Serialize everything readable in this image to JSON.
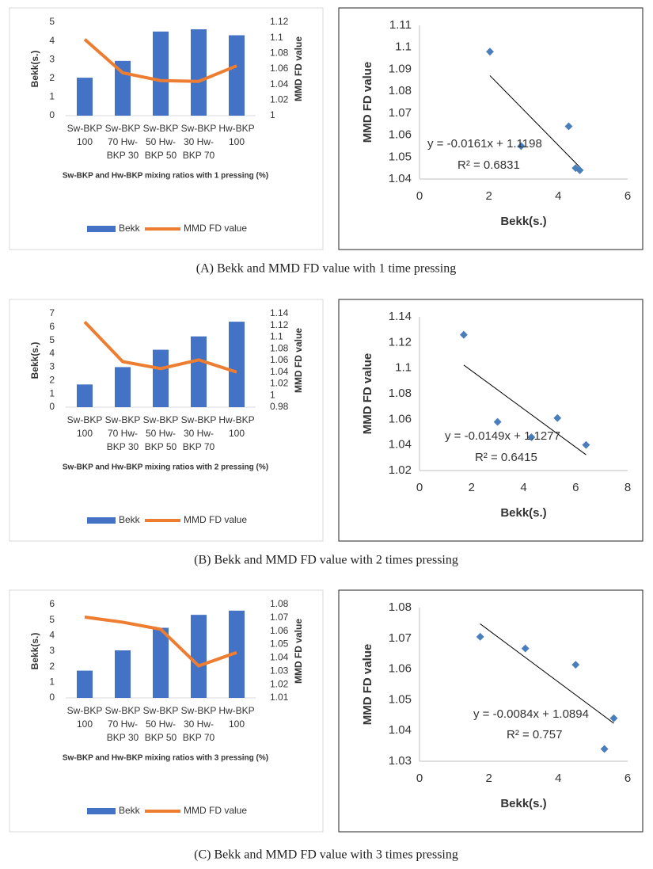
{
  "chart_data": [
    {
      "type": "combo",
      "categories": [
        [
          "Sw-BKP",
          "100"
        ],
        [
          "Sw-BKP",
          "70 Hw-",
          "BKP 30"
        ],
        [
          "Sw-BKP",
          "50 Hw-",
          "BKP 50"
        ],
        [
          "Sw-BKP",
          "30 Hw-",
          "BKP 70"
        ],
        [
          "Hw-BKP",
          "100"
        ]
      ],
      "series": [
        {
          "name": "Bekk",
          "color": "#4472c4",
          "values": [
            2.03,
            2.93,
            4.5,
            4.62,
            4.3
          ]
        },
        {
          "name": "MMD FD value",
          "color": "#ed7d31",
          "axis": "y2",
          "values": [
            1.098,
            1.055,
            1.045,
            1.044,
            1.064
          ]
        }
      ],
      "ylim": [
        0,
        5
      ],
      "yticks": [
        0,
        1,
        2,
        3,
        4,
        5
      ],
      "y2lim": [
        1,
        1.12
      ],
      "y2ticks": [
        1,
        1.02,
        1.04,
        1.06,
        1.08,
        1.1,
        1.12
      ],
      "y_label": "Bekk(s.)",
      "y2_label": "MMD FD value",
      "x_label": "Sw-BKP and Hw-BKP mixing ratios with 1 pressing (%)"
    },
    {
      "type": "scatter",
      "x": [
        2.03,
        2.93,
        4.3,
        4.5,
        4.62
      ],
      "values": [
        1.098,
        1.055,
        1.064,
        1.045,
        1.044
      ],
      "color": "#4a7ebb",
      "xlim": [
        0,
        6
      ],
      "xticks": [
        0,
        2,
        4,
        6
      ],
      "ylim": [
        1.04,
        1.11
      ],
      "yticks": [
        1.04,
        1.05,
        1.06,
        1.07,
        1.08,
        1.09,
        1.1,
        1.11
      ],
      "x_label": "Bekk(s.)",
      "y_label": "MMD FD value",
      "trendline": {
        "slope": -0.0161,
        "intercept": 1.1198
      },
      "annotations": [
        "y = -0.0161x + 1.1198",
        "R² = 0.6831"
      ]
    },
    {
      "type": "combo",
      "categories": [
        [
          "Sw-BKP",
          "100"
        ],
        [
          "Sw-BKP",
          "70 Hw-",
          "BKP 30"
        ],
        [
          "Sw-BKP",
          "50 Hw-",
          "BKP 50"
        ],
        [
          "Sw-BKP",
          "30 Hw-",
          "BKP 70"
        ],
        [
          "Hw-BKP",
          "100"
        ]
      ],
      "series": [
        {
          "name": "Bekk",
          "color": "#4472c4",
          "values": [
            1.7,
            3.0,
            4.3,
            5.3,
            6.4
          ]
        },
        {
          "name": "MMD FD value",
          "color": "#ed7d31",
          "axis": "y2",
          "values": [
            1.126,
            1.058,
            1.046,
            1.061,
            1.04
          ]
        }
      ],
      "ylim": [
        0,
        7
      ],
      "yticks": [
        0,
        1,
        2,
        3,
        4,
        5,
        6,
        7
      ],
      "y2lim": [
        0.98,
        1.14
      ],
      "y2ticks": [
        0.98,
        1,
        1.02,
        1.04,
        1.06,
        1.08,
        1.1,
        1.12,
        1.14
      ],
      "y_label": "Bekk(s.)",
      "y2_label": "MMD FD value",
      "x_label": "Sw-BKP and Hw-BKP mixing ratios with 2 pressing (%)"
    },
    {
      "type": "scatter",
      "x": [
        1.7,
        3.0,
        4.3,
        5.3,
        6.4
      ],
      "values": [
        1.126,
        1.058,
        1.046,
        1.061,
        1.04
      ],
      "color": "#4a7ebb",
      "xlim": [
        0,
        8
      ],
      "xticks": [
        0,
        2,
        4,
        6,
        8
      ],
      "ylim": [
        1.02,
        1.14
      ],
      "yticks": [
        1.02,
        1.04,
        1.06,
        1.08,
        1.1,
        1.12,
        1.14
      ],
      "x_label": "Bekk(s.)",
      "y_label": "MMD FD value",
      "trendline": {
        "slope": -0.0149,
        "intercept": 1.1277
      },
      "annotations": [
        "y = -0.0149x + 1.1277",
        "R² = 0.6415"
      ]
    },
    {
      "type": "combo",
      "categories": [
        [
          "Sw-BKP",
          "100"
        ],
        [
          "Sw-BKP",
          "70 Hw-",
          "BKP 30"
        ],
        [
          "Sw-BKP",
          "50 Hw-",
          "BKP 50"
        ],
        [
          "Sw-BKP",
          "30 Hw-",
          "BKP 70"
        ],
        [
          "Hw-BKP",
          "100"
        ]
      ],
      "series": [
        {
          "name": "Bekk",
          "color": "#4472c4",
          "values": [
            1.75,
            3.05,
            4.5,
            5.33,
            5.6
          ]
        },
        {
          "name": "MMD FD value",
          "color": "#ed7d31",
          "axis": "y2",
          "values": [
            1.0705,
            1.0667,
            1.0614,
            1.034,
            1.044
          ]
        }
      ],
      "ylim": [
        0,
        6
      ],
      "yticks": [
        0,
        1,
        2,
        3,
        4,
        5,
        6
      ],
      "y2lim": [
        1.01,
        1.08
      ],
      "y2ticks": [
        1.01,
        1.02,
        1.03,
        1.04,
        1.05,
        1.06,
        1.07,
        1.08
      ],
      "y_label": "Bekk(s.)",
      "y2_label": "MMD FD value",
      "x_label": "Sw-BKP and Hw-BKP mixing ratios with 3 pressing (%)"
    },
    {
      "type": "scatter",
      "x": [
        1.75,
        3.05,
        4.5,
        5.33,
        5.6
      ],
      "values": [
        1.0705,
        1.0667,
        1.0614,
        1.034,
        1.044
      ],
      "color": "#4a7ebb",
      "xlim": [
        0,
        6
      ],
      "xticks": [
        0,
        2,
        4,
        6
      ],
      "ylim": [
        1.03,
        1.08
      ],
      "yticks": [
        1.03,
        1.04,
        1.05,
        1.06,
        1.07,
        1.08
      ],
      "x_label": "Bekk(s.)",
      "y_label": "MMD FD value",
      "trendline": {
        "slope": -0.0084,
        "intercept": 1.0894
      },
      "annotations": [
        "y = -0.0084x + 1.0894",
        "R² = 0.757"
      ]
    }
  ],
  "captions": [
    "(A) Bekk and MMD FD value with 1 time pressing",
    "(B) Bekk and MMD FD value with 2 times pressing",
    "(C) Bekk and MMD FD value with 3 times pressing"
  ]
}
